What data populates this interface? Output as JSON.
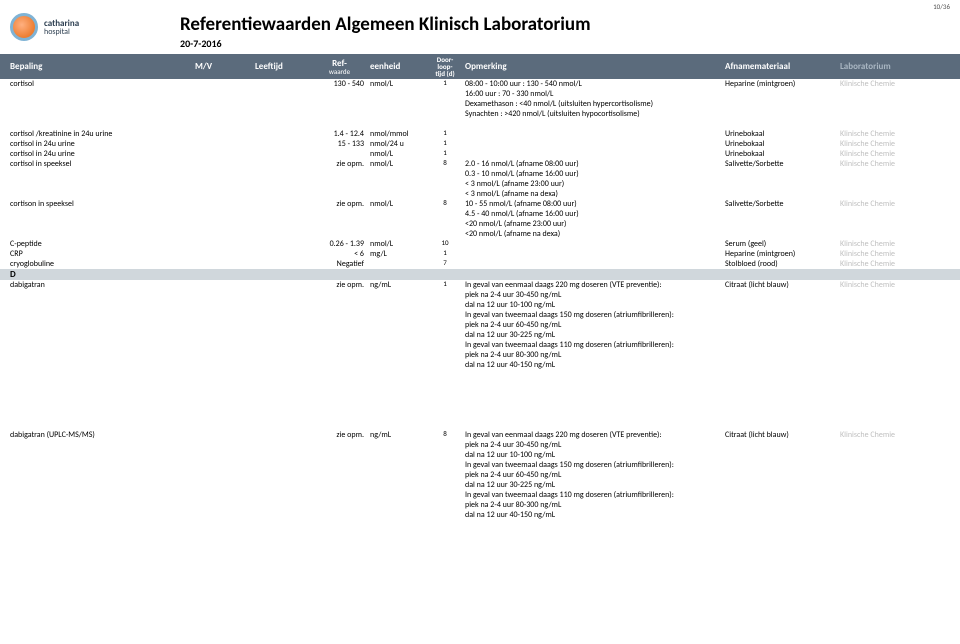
{
  "page_number": "10/36",
  "hospital": {
    "name": "catharina",
    "sub": "hospital"
  },
  "title": "Referentiewaarden Algemeen Klinisch Laboratorium",
  "date": "20-7-2016",
  "columns": {
    "bepaling": "Bepaling",
    "mv": "M/V",
    "leeftijd": "Leeftijd",
    "ref": "Ref-",
    "ref2": "waarde",
    "eenheid": "eenheid",
    "door1": "Door-",
    "door2": "loop-",
    "door3": "tijd (d)",
    "opm": "Opmerking",
    "afn": "Afnamemateriaal",
    "lab": "Laboratorium"
  },
  "top": {
    "bepaling": "cortisol",
    "ref": "130 - 540",
    "eenheid": "nmol/L",
    "door": "1",
    "opm1": "08:00 - 10:00 uur   : 130 - 540 nmol/L",
    "opm2": "16:00 uur                 : 70 - 330 nmol/L",
    "opm3": "Dexamethason     : <40 nmol/L (uitsluiten hypercortisolisme)",
    "opm4": "Synachten              : >420 nmol/L (uitsluiten hypocortisolisme)",
    "afn": "Heparine (mintgroen)",
    "lab": "Klinische Chemie"
  },
  "rows": [
    {
      "b": "cortisol /kreatinine in 24u urine",
      "ref": "1.4 - 12.4",
      "e": "nmol/mmol",
      "d": "1",
      "o": [],
      "a": "Urinebokaal",
      "l": "Klinische Chemie"
    },
    {
      "b": "cortisol in 24u urine",
      "ref": "15 - 133",
      "e": "nmol/24 u",
      "d": "1",
      "o": [],
      "a": "Urinebokaal",
      "l": "Klinische Chemie"
    },
    {
      "b": "cortisol in 24u urine",
      "ref": "",
      "e": "nmol/L",
      "d": "1",
      "o": [],
      "a": "Urinebokaal",
      "l": "Klinische Chemie"
    },
    {
      "b": "cortisol in speeksel",
      "ref": "zie opm.",
      "e": "nmol/L",
      "d": "8",
      "o": [
        "2.0 - 16  nmol/L (afname 08:00 uur)",
        "0.3 - 10  nmol/L (afname 16:00 uur)",
        "< 3 nmol/L (afname 23:00 uur)",
        "< 3 nmol/L (afname na dexa)"
      ],
      "a": "Salivette/Sorbette",
      "l": "Klinische Chemie"
    },
    {
      "b": "cortison in speeksel",
      "ref": "zie opm.",
      "e": "nmol/L",
      "d": "8",
      "o": [
        "10 - 55  nmol/L (afname 08:00 uur)",
        "4.5 - 40  nmol/L (afname 16:00 uur)",
        "<20 nmol/L (afname 23:00 uur)",
        "<20 nmol/L (afname na dexa)"
      ],
      "a": "Salivette/Sorbette",
      "l": "Klinische Chemie"
    },
    {
      "b": "C-peptide",
      "ref": "0.26 - 1.39",
      "e": "nmol/L",
      "d": "10",
      "o": [],
      "a": "Serum (geel)",
      "l": "Klinische Chemie"
    },
    {
      "b": "CRP",
      "ref": "<  6",
      "e": "mg/L",
      "d": "1",
      "o": [],
      "a": "Heparine (mintgroen)",
      "l": "Klinische Chemie"
    },
    {
      "b": "cryoglobuline",
      "ref": "Negatief",
      "e": "",
      "d": "7",
      "o": [],
      "a": "Stolbloed (rood)",
      "l": "Klinische Chemie"
    }
  ],
  "section_letter": "D",
  "dab1": {
    "b": "dabigatran",
    "ref": "zie opm.",
    "e": "ng/mL",
    "d": "1",
    "o": [
      "In geval van eenmaal daags 220 mg doseren (VTE preventie):",
      "piek na 2-4 uur 30-450 ng/mL",
      "dal na 12 uur 10-100 ng/mL",
      "In geval van tweemaal daags 150 mg doseren (atriumfibrilleren):",
      "piek na 2-4 uur 60-450 ng/mL",
      "dal na 12 uur 30-225 ng/mL",
      "In geval van tweemaal daags 110 mg doseren (atriumfibrilleren):",
      "piek na 2-4 uur 80-300 ng/mL",
      "dal na 12 uur 40-150 ng/mL"
    ],
    "a": "Citraat (licht blauw)",
    "l": "Klinische Chemie"
  },
  "dab2": {
    "b": "dabigatran (UPLC-MS/MS)",
    "ref": "zie opm.",
    "e": "ng/mL",
    "d": "8",
    "o": [
      "In geval van eenmaal daags 220 mg doseren (VTE preventie):",
      "piek na 2-4 uur 30-450 ng/mL",
      "dal na 12 uur 10-100 ng/mL",
      "In geval van tweemaal daags 150 mg doseren (atriumfibrilleren):",
      "piek na 2-4 uur 60-450 ng/mL",
      "dal na 12 uur 30-225 ng/mL",
      "In geval van tweemaal daags 110 mg doseren (atriumfibrilleren):",
      "piek na 2-4 uur 80-300 ng/mL",
      "dal na 12 uur 40-150 ng/mL"
    ],
    "a": "Citraat (licht blauw)",
    "l": "Klinische Chemie"
  }
}
